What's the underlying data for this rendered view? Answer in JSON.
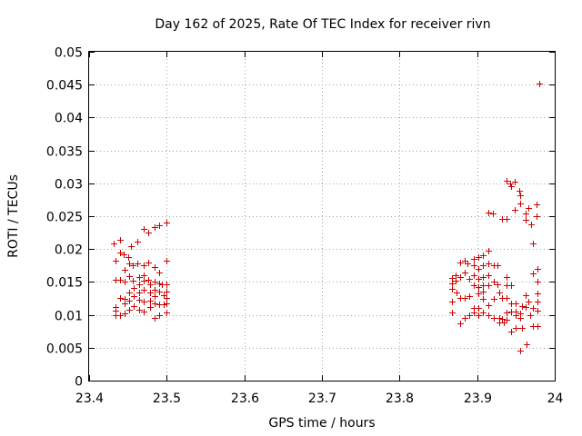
{
  "chart_data": {
    "type": "scatter",
    "title": "Day 162 of 2025, Rate Of TEC Index for receiver rivn",
    "xlabel": "GPS time / hours",
    "ylabel": "ROTI / TECUs",
    "xlim": [
      23.4,
      24.0
    ],
    "ylim": [
      0,
      0.05
    ],
    "x_ticks": [
      "23.4",
      "23.5",
      "23.6",
      "23.7",
      "23.8",
      "23.9",
      "24"
    ],
    "y_ticks": [
      "0",
      "0.005",
      "0.01",
      "0.015",
      "0.02",
      "0.025",
      "0.03",
      "0.035",
      "0.04",
      "0.045",
      "0.05"
    ],
    "grid": true,
    "marker": "plus",
    "color": "#cc0000",
    "series": [
      {
        "points": [
          [
            23.432,
            0.0208
          ],
          [
            23.434,
            0.0182
          ],
          [
            23.434,
            0.0154
          ],
          [
            23.434,
            0.0112
          ],
          [
            23.434,
            0.0106
          ],
          [
            23.434,
            0.01
          ],
          [
            23.44,
            0.0214
          ],
          [
            23.44,
            0.0195
          ],
          [
            23.44,
            0.0153
          ],
          [
            23.44,
            0.0126
          ],
          [
            23.44,
            0.01
          ],
          [
            23.444,
            0.0192
          ],
          [
            23.446,
            0.0168
          ],
          [
            23.446,
            0.0151
          ],
          [
            23.446,
            0.0124
          ],
          [
            23.446,
            0.0117
          ],
          [
            23.446,
            0.0102
          ],
          [
            23.45,
            0.0188
          ],
          [
            23.452,
            0.0178
          ],
          [
            23.452,
            0.0159
          ],
          [
            23.452,
            0.0134
          ],
          [
            23.452,
            0.0122
          ],
          [
            23.452,
            0.0108
          ],
          [
            23.454,
            0.0204
          ],
          [
            23.456,
            0.0176
          ],
          [
            23.456,
            0.0152
          ],
          [
            23.458,
            0.0141
          ],
          [
            23.458,
            0.0128
          ],
          [
            23.458,
            0.0113
          ],
          [
            23.462,
            0.0212
          ],
          [
            23.462,
            0.0178
          ],
          [
            23.464,
            0.0158
          ],
          [
            23.464,
            0.0146
          ],
          [
            23.464,
            0.0134
          ],
          [
            23.464,
            0.0123
          ],
          [
            23.464,
            0.0108
          ],
          [
            23.47,
            0.023
          ],
          [
            23.47,
            0.0176
          ],
          [
            23.47,
            0.016
          ],
          [
            23.47,
            0.0152
          ],
          [
            23.47,
            0.0138
          ],
          [
            23.47,
            0.012
          ],
          [
            23.47,
            0.0105
          ],
          [
            23.476,
            0.0225
          ],
          [
            23.476,
            0.018
          ],
          [
            23.476,
            0.0154
          ],
          [
            23.478,
            0.0146
          ],
          [
            23.478,
            0.0134
          ],
          [
            23.478,
            0.0122
          ],
          [
            23.478,
            0.0112
          ],
          [
            23.484,
            0.0234
          ],
          [
            23.484,
            0.0172
          ],
          [
            23.484,
            0.015
          ],
          [
            23.484,
            0.0138
          ],
          [
            23.484,
            0.0128
          ],
          [
            23.484,
            0.0118
          ],
          [
            23.484,
            0.0095
          ],
          [
            23.49,
            0.0236
          ],
          [
            23.49,
            0.0165
          ],
          [
            23.49,
            0.0148
          ],
          [
            23.49,
            0.0136
          ],
          [
            23.49,
            0.0116
          ],
          [
            23.49,
            0.01
          ],
          [
            23.494,
            0.0146
          ],
          [
            23.496,
            0.013
          ],
          [
            23.496,
            0.0116
          ],
          [
            23.5,
            0.024
          ],
          [
            23.5,
            0.0183
          ],
          [
            23.5,
            0.0146
          ],
          [
            23.5,
            0.0136
          ],
          [
            23.5,
            0.0126
          ],
          [
            23.5,
            0.0117
          ],
          [
            23.5,
            0.0103
          ],
          [
            23.868,
            0.0156
          ],
          [
            23.868,
            0.0148
          ],
          [
            23.868,
            0.014
          ],
          [
            23.868,
            0.012
          ],
          [
            23.868,
            0.0103
          ],
          [
            23.872,
            0.016
          ],
          [
            23.872,
            0.0152
          ],
          [
            23.874,
            0.0134
          ],
          [
            23.878,
            0.018
          ],
          [
            23.878,
            0.0158
          ],
          [
            23.878,
            0.0126
          ],
          [
            23.878,
            0.0087
          ],
          [
            23.884,
            0.0182
          ],
          [
            23.884,
            0.0164
          ],
          [
            23.884,
            0.0126
          ],
          [
            23.884,
            0.0095
          ],
          [
            23.888,
            0.0178
          ],
          [
            23.89,
            0.0155
          ],
          [
            23.89,
            0.0128
          ],
          [
            23.89,
            0.01
          ],
          [
            23.896,
            0.0185
          ],
          [
            23.896,
            0.0175
          ],
          [
            23.896,
            0.016
          ],
          [
            23.896,
            0.0145
          ],
          [
            23.896,
            0.011
          ],
          [
            23.896,
            0.0104
          ],
          [
            23.902,
            0.0188
          ],
          [
            23.902,
            0.017
          ],
          [
            23.902,
            0.0155
          ],
          [
            23.902,
            0.0142
          ],
          [
            23.902,
            0.0132
          ],
          [
            23.902,
            0.011
          ],
          [
            23.902,
            0.01
          ],
          [
            23.908,
            0.019
          ],
          [
            23.908,
            0.0175
          ],
          [
            23.908,
            0.0158
          ],
          [
            23.908,
            0.0145
          ],
          [
            23.908,
            0.0135
          ],
          [
            23.908,
            0.0125
          ],
          [
            23.908,
            0.0103
          ],
          [
            23.914,
            0.0256
          ],
          [
            23.914,
            0.0197
          ],
          [
            23.914,
            0.0178
          ],
          [
            23.914,
            0.016
          ],
          [
            23.914,
            0.0145
          ],
          [
            23.914,
            0.0115
          ],
          [
            23.914,
            0.01
          ],
          [
            23.92,
            0.0254
          ],
          [
            23.922,
            0.0176
          ],
          [
            23.922,
            0.015
          ],
          [
            23.922,
            0.0125
          ],
          [
            23.922,
            0.0095
          ],
          [
            23.926,
            0.0175
          ],
          [
            23.926,
            0.0146
          ],
          [
            23.928,
            0.0134
          ],
          [
            23.928,
            0.0095
          ],
          [
            23.928,
            0.0088
          ],
          [
            23.932,
            0.0246
          ],
          [
            23.932,
            0.0126
          ],
          [
            23.932,
            0.0094
          ],
          [
            23.934,
            0.0088
          ],
          [
            23.938,
            0.0304
          ],
          [
            23.938,
            0.0246
          ],
          [
            23.938,
            0.0158
          ],
          [
            23.938,
            0.0145
          ],
          [
            23.938,
            0.0126
          ],
          [
            23.938,
            0.0103
          ],
          [
            23.938,
            0.0092
          ],
          [
            23.942,
            0.03
          ],
          [
            23.944,
            0.0295
          ],
          [
            23.944,
            0.0145
          ],
          [
            23.944,
            0.0118
          ],
          [
            23.944,
            0.0105
          ],
          [
            23.944,
            0.0075
          ],
          [
            23.948,
            0.0302
          ],
          [
            23.948,
            0.026
          ],
          [
            23.95,
            0.0118
          ],
          [
            23.95,
            0.0105
          ],
          [
            23.95,
            0.008
          ],
          [
            23.95,
            0.01
          ],
          [
            23.954,
            0.0288
          ],
          [
            23.956,
            0.0282
          ],
          [
            23.956,
            0.027
          ],
          [
            23.956,
            0.0102
          ],
          [
            23.956,
            0.0095
          ],
          [
            23.956,
            0.0045
          ],
          [
            23.958,
            0.0113
          ],
          [
            23.958,
            0.008
          ],
          [
            23.962,
            0.0254
          ],
          [
            23.962,
            0.0244
          ],
          [
            23.962,
            0.013
          ],
          [
            23.962,
            0.0112
          ],
          [
            23.964,
            0.0055
          ],
          [
            23.966,
            0.0262
          ],
          [
            23.966,
            0.012
          ],
          [
            23.968,
            0.01
          ],
          [
            23.97,
            0.0238
          ],
          [
            23.972,
            0.0208
          ],
          [
            23.972,
            0.0163
          ],
          [
            23.972,
            0.011
          ],
          [
            23.972,
            0.0083
          ],
          [
            23.976,
            0.0268
          ],
          [
            23.976,
            0.025
          ],
          [
            23.978,
            0.017
          ],
          [
            23.978,
            0.015
          ],
          [
            23.978,
            0.0132
          ],
          [
            23.978,
            0.012
          ],
          [
            23.978,
            0.0107
          ],
          [
            23.978,
            0.0083
          ],
          [
            23.98,
            0.0452
          ]
        ]
      }
    ]
  }
}
